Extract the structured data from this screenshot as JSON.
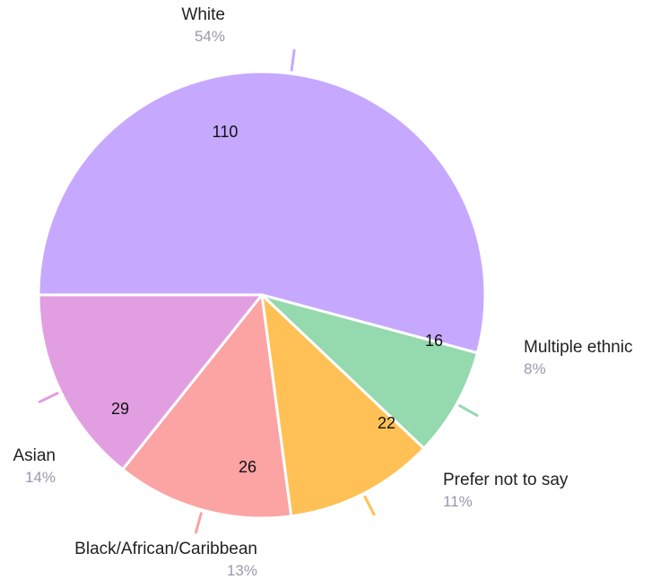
{
  "chart_data": {
    "type": "pie",
    "categories": [
      "White",
      "Multiple ethnic",
      "Prefer not to say",
      "Black/African/Caribbean",
      "Asian"
    ],
    "values": [
      110,
      16,
      22,
      26,
      29
    ],
    "percent_labels": [
      "54%",
      "8%",
      "11%",
      "13%",
      "14%"
    ],
    "colors": [
      "#c6a9ff",
      "#95d9ae",
      "#ffc155",
      "#fca3a3",
      "#e19fe1"
    ],
    "start_angle_deg": 180,
    "direction": "clockwise",
    "legend": "none"
  }
}
